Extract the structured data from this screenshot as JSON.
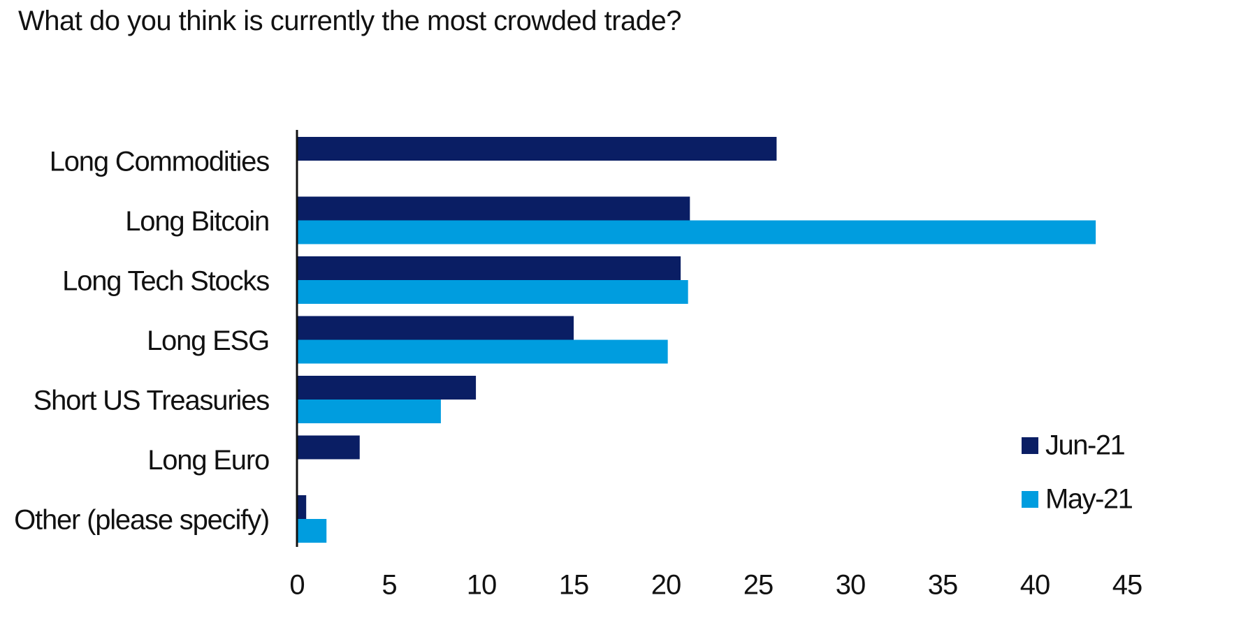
{
  "chart_data": {
    "type": "bar",
    "orientation": "horizontal",
    "title": "What do you think is currently the most crowded trade?",
    "categories": [
      "Long Commodities",
      "Long Bitcoin",
      "Long Tech Stocks",
      "Long ESG",
      "Short US Treasuries",
      "Long Euro",
      "Other (please specify)"
    ],
    "series": [
      {
        "name": "Jun-21",
        "color": "#0a1e64",
        "values": [
          26,
          21.3,
          20.8,
          15,
          9.7,
          3.4,
          0.5
        ]
      },
      {
        "name": "May-21",
        "color": "#009ddf",
        "values": [
          null,
          43.3,
          21.2,
          20.1,
          7.8,
          null,
          1.6
        ]
      }
    ],
    "xlim": [
      0,
      45
    ],
    "xticks": [
      "0",
      "5",
      "10",
      "15",
      "20",
      "25",
      "30",
      "35",
      "40",
      "45"
    ],
    "xlabel": "",
    "ylabel": "",
    "grid": false,
    "legend_position": "bottom-right"
  }
}
